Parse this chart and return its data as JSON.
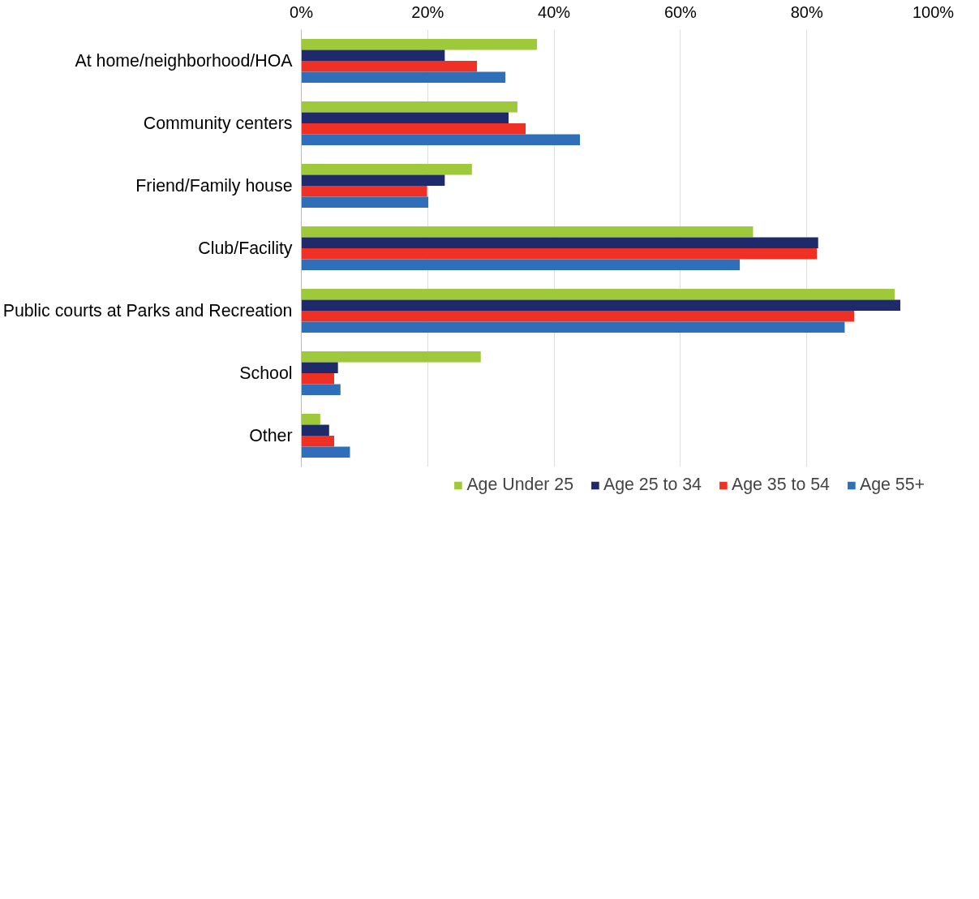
{
  "chart_data": {
    "type": "bar",
    "orientation": "horizontal",
    "categories": [
      "At home/neighborhood/HOA",
      "Community centers",
      "Friend/Family house",
      "Club/Facility",
      "Public courts at Parks and Recreation",
      "School",
      "Other"
    ],
    "series": [
      {
        "name": "Age Under 25",
        "color": "#9dc93b",
        "values": [
          37.3,
          34.2,
          27.0,
          71.5,
          93.9,
          28.4,
          3.0
        ]
      },
      {
        "name": "Age 25 to 34",
        "color": "#1f2a6b",
        "values": [
          22.7,
          32.8,
          22.7,
          81.8,
          94.8,
          5.8,
          4.4
        ]
      },
      {
        "name": "Age 35 to 54",
        "color": "#ee3124",
        "values": [
          27.8,
          35.5,
          19.9,
          81.6,
          87.5,
          5.2,
          5.2
        ]
      },
      {
        "name": "Age 55+",
        "color": "#2f6fba",
        "values": [
          32.3,
          44.1,
          20.1,
          69.4,
          86.0,
          6.2,
          7.7
        ]
      }
    ],
    "xlim": [
      0,
      100
    ],
    "xticks": [
      {
        "value": 0,
        "label": "0%"
      },
      {
        "value": 20,
        "label": "20%"
      },
      {
        "value": 40,
        "label": "40%"
      },
      {
        "value": 60,
        "label": "60%"
      },
      {
        "value": 80,
        "label": "80%"
      },
      {
        "value": 100,
        "label": "100%"
      }
    ],
    "grid": "x",
    "legend": "bottom"
  }
}
